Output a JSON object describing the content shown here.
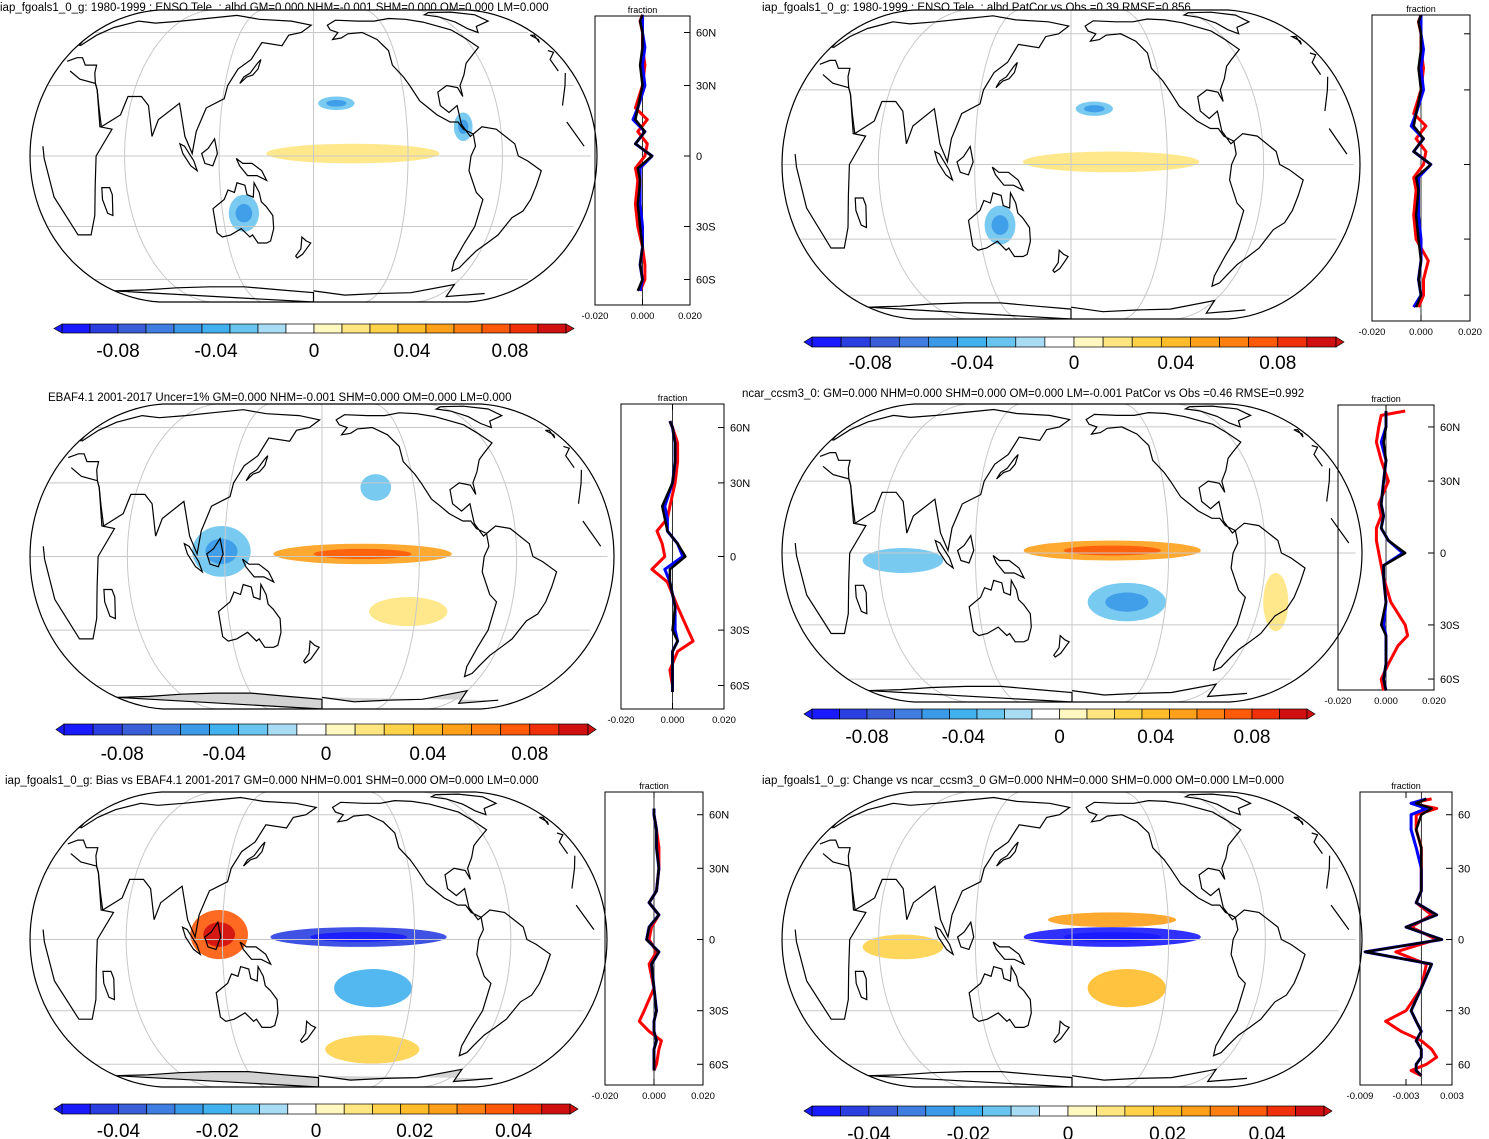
{
  "figure": {
    "colors": {
      "ocean_bg": "#ffffff",
      "coast": "#000000",
      "grid": "#c8c8c8",
      "missing": "#d3d3d3",
      "profile_red": "#ff0000",
      "profile_blue": "#0000ff",
      "profile_black": "#000000"
    }
  },
  "chart_data": [
    {
      "type": "heatmap",
      "title": "iap_fgoals1_0_g: 1980-1999 : ENSO Tele. : albd GM=0.000 NHM=-0.001 SHM=0.000 OM=0.000 LM=0.000",
      "projection": "Robinson, Pacific-centered",
      "colorbar": {
        "ticks": [
          "-0.08",
          "-0.04",
          "0",
          "0.04",
          "0.08"
        ],
        "colors": [
          "#1a1aff",
          "#2b3fe0",
          "#3a5ed8",
          "#3f7ee0",
          "#3b9ae8",
          "#40b0ee",
          "#6ac4f0",
          "#a8dcf5",
          "#ffffff",
          "#fff8c0",
          "#ffe680",
          "#ffd24a",
          "#ffbc2a",
          "#ffa01a",
          "#ff7f10",
          "#ff5a0a",
          "#f03008",
          "#d01010"
        ]
      },
      "anomalies_approx": [
        {
          "region": "equatorial Pacific",
          "sign": "positive",
          "value": 0.01
        },
        {
          "region": "north-central Pacific",
          "sign": "negative",
          "value": -0.03
        },
        {
          "region": "Australia",
          "sign": "negative",
          "value": -0.03
        },
        {
          "region": "Central America",
          "sign": "negative",
          "value": -0.03
        }
      ],
      "profile": {
        "xlabel": "fraction",
        "xticks": [
          "-0.020",
          "0.000",
          "0.020"
        ],
        "xlim": [
          -0.02,
          0.02
        ],
        "yticks": [
          "60N",
          "30N",
          "0",
          "30S",
          "60S"
        ],
        "lat": [
          78,
          70,
          60,
          50,
          40,
          30,
          20,
          15,
          10,
          5,
          0,
          -5,
          -10,
          -20,
          -30,
          -40,
          -50,
          -60,
          -70
        ],
        "model": [
          0.0,
          -0.001,
          0.0,
          0.0,
          -0.001,
          0.0,
          -0.002,
          -0.003,
          0.001,
          -0.003,
          0.004,
          -0.002,
          -0.001,
          -0.002,
          -0.001,
          0.0,
          -0.001,
          0.0,
          -0.002
        ],
        "obs": [
          0.0,
          -0.001,
          0.0,
          0.0,
          0.001,
          0.0,
          -0.003,
          0.002,
          -0.002,
          0.002,
          0.001,
          -0.003,
          -0.002,
          -0.003,
          -0.002,
          0.0,
          0.001,
          0.001,
          -0.001
        ],
        "other": [
          0.0,
          0.0,
          0.0,
          0.001,
          0.0,
          0.001,
          -0.002,
          -0.004,
          0.001,
          -0.003,
          0.004,
          -0.001,
          -0.001,
          -0.001,
          0.0,
          0.0,
          -0.001,
          0.0,
          -0.001
        ]
      }
    },
    {
      "type": "heatmap",
      "title": "iap_fgoals1_0_g: 1980-1999 : ENSO Tele. : albd PatCor vs Obs =0.39 RMSE=0.856",
      "projection": "Robinson, Pacific-centered",
      "colorbar": {
        "ticks": [
          "-0.08",
          "-0.04",
          "0",
          "0.04",
          "0.08"
        ],
        "colors": [
          "#1a1aff",
          "#2b3fe0",
          "#3a5ed8",
          "#3f7ee0",
          "#3b9ae8",
          "#40b0ee",
          "#6ac4f0",
          "#a8dcf5",
          "#ffffff",
          "#fff8c0",
          "#ffe680",
          "#ffd24a",
          "#ffbc2a",
          "#ffa01a",
          "#ff7f10",
          "#ff5a0a",
          "#f03008",
          "#d01010"
        ]
      },
      "anomalies_approx": [
        {
          "region": "equatorial Pacific",
          "sign": "positive",
          "value": 0.01
        },
        {
          "region": "north-central Pacific",
          "sign": "negative",
          "value": -0.03
        },
        {
          "region": "Australia",
          "sign": "negative",
          "value": -0.03
        }
      ],
      "profile": {
        "xlabel": "fraction",
        "xticks": [
          "-0.020",
          "0.000",
          "0.020"
        ],
        "xlim": [
          -0.02,
          0.02
        ],
        "yticks": [
          "",
          "",
          "",
          "",
          ""
        ],
        "lat": [
          78,
          70,
          60,
          50,
          40,
          30,
          20,
          15,
          10,
          5,
          0,
          -5,
          -10,
          -20,
          -30,
          -40,
          -50,
          -60,
          -70
        ],
        "model": [
          0.0,
          -0.001,
          0.0,
          0.0,
          -0.001,
          0.0,
          -0.002,
          -0.003,
          0.001,
          -0.003,
          0.004,
          -0.002,
          -0.001,
          -0.002,
          -0.001,
          0.0,
          -0.001,
          0.0,
          -0.002
        ],
        "obs": [
          0.0,
          -0.001,
          0.0,
          0.0,
          0.001,
          0.0,
          -0.003,
          0.002,
          -0.002,
          0.002,
          0.001,
          -0.003,
          -0.002,
          -0.003,
          -0.002,
          0.003,
          0.001,
          0.001,
          -0.001
        ],
        "other": [
          0.0,
          0.0,
          0.0,
          0.001,
          0.0,
          0.001,
          -0.002,
          -0.004,
          0.001,
          -0.003,
          0.004,
          -0.001,
          -0.001,
          -0.001,
          0.0,
          0.0,
          -0.001,
          0.0,
          -0.003
        ]
      }
    },
    {
      "type": "heatmap",
      "title": "EBAF4.1 2001-2017 Uncer=1% GM=0.000 NHM=-0.001 SHM=0.000 OM=0.000 LM=0.000",
      "projection": "Robinson, Pacific-centered",
      "colorbar": {
        "ticks": [
          "-0.08",
          "-0.04",
          "0",
          "0.04",
          "0.08"
        ],
        "colors": [
          "#1a1aff",
          "#2b3fe0",
          "#3a5ed8",
          "#3f7ee0",
          "#3b9ae8",
          "#40b0ee",
          "#6ac4f0",
          "#a8dcf5",
          "#ffffff",
          "#fff8c0",
          "#ffe680",
          "#ffd24a",
          "#ffbc2a",
          "#ffa01a",
          "#ff7f10",
          "#ff5a0a",
          "#f03008",
          "#d01010"
        ]
      },
      "anomalies_approx": [
        {
          "region": "equatorial Pacific",
          "sign": "positive",
          "value": 0.04
        },
        {
          "region": "Maritime Continent",
          "sign": "negative",
          "value": -0.03
        },
        {
          "region": "south-east Pacific",
          "sign": "positive",
          "value": 0.015
        },
        {
          "region": "north-east Pacific",
          "sign": "negative",
          "value": -0.02
        }
      ],
      "profile": {
        "xlabel": "fraction",
        "xticks": [
          "-0.020",
          "0.000",
          "0.020"
        ],
        "xlim": [
          -0.02,
          0.02
        ],
        "yticks": [
          "60N",
          "30N",
          "0",
          "30S",
          "60S"
        ],
        "lat": [
          65,
          60,
          50,
          40,
          30,
          20,
          15,
          10,
          5,
          0,
          -5,
          -10,
          -20,
          -30,
          -35,
          -40,
          -50,
          -60,
          -65
        ],
        "model": [
          -0.001,
          0.0,
          0.001,
          0.001,
          0.0,
          -0.004,
          -0.003,
          -0.002,
          0.002,
          0.005,
          -0.001,
          -0.001,
          0.001,
          0.0,
          0.002,
          0.0,
          0.0,
          0.0,
          0.0
        ],
        "obs": [
          -0.001,
          0.0,
          0.002,
          0.002,
          0.001,
          -0.001,
          -0.002,
          -0.006,
          -0.004,
          -0.003,
          -0.008,
          -0.002,
          0.002,
          0.006,
          0.008,
          0.002,
          -0.001,
          0.0,
          0.0
        ],
        "other": [
          -0.001,
          0.0,
          0.001,
          0.001,
          0.0,
          -0.003,
          -0.002,
          -0.002,
          0.002,
          0.004,
          -0.003,
          -0.001,
          0.001,
          0.001,
          0.002,
          0.0,
          0.0,
          0.0,
          0.0
        ]
      }
    },
    {
      "type": "heatmap",
      "title": "ncar_ccsm3_0: GM=0.000 NHM=0.000 SHM=0.000 OM=0.000 LM=-0.001 PatCor vs Obs =0.46 RMSE=0.992",
      "projection": "Robinson, Pacific-centered",
      "colorbar": {
        "ticks": [
          "-0.08",
          "-0.04",
          "0",
          "0.04",
          "0.08"
        ],
        "colors": [
          "#1a1aff",
          "#2b3fe0",
          "#3a5ed8",
          "#3f7ee0",
          "#3b9ae8",
          "#40b0ee",
          "#6ac4f0",
          "#a8dcf5",
          "#ffffff",
          "#fff8c0",
          "#ffe680",
          "#ffd24a",
          "#ffbc2a",
          "#ffa01a",
          "#ff7f10",
          "#ff5a0a",
          "#f03008",
          "#d01010"
        ]
      },
      "anomalies_approx": [
        {
          "region": "equatorial Pacific",
          "sign": "positive",
          "value": 0.04
        },
        {
          "region": "south-central Pacific",
          "sign": "negative",
          "value": -0.03
        },
        {
          "region": "Indian Ocean",
          "sign": "negative",
          "value": -0.02
        },
        {
          "region": "eastern South America",
          "sign": "positive",
          "value": 0.01
        }
      ],
      "profile": {
        "xlabel": "fraction",
        "xticks": [
          "-0.020",
          "0.000",
          "0.020"
        ],
        "xlim": [
          -0.02,
          0.02
        ],
        "yticks": [
          "60N",
          "30N",
          "0",
          "30S",
          "60S"
        ],
        "lat": [
          75,
          70,
          60,
          50,
          40,
          30,
          20,
          15,
          10,
          5,
          0,
          -5,
          -10,
          -20,
          -30,
          -35,
          -40,
          -50,
          -60,
          -70
        ],
        "model": [
          0.0,
          0.0,
          0.0,
          -0.001,
          0.0,
          -0.001,
          -0.002,
          -0.001,
          -0.002,
          0.001,
          0.008,
          -0.001,
          -0.001,
          0.0,
          -0.002,
          0.0,
          0.0,
          0.0,
          -0.001,
          0.0
        ],
        "obs": [
          0.008,
          -0.002,
          -0.003,
          -0.004,
          -0.002,
          0.001,
          -0.003,
          -0.002,
          -0.004,
          -0.004,
          -0.003,
          -0.002,
          -0.001,
          0.002,
          0.008,
          0.009,
          0.005,
          0.001,
          -0.002,
          -0.001
        ],
        "other": [
          0.0,
          0.0,
          0.0,
          -0.002,
          0.0,
          -0.001,
          -0.002,
          -0.001,
          -0.002,
          0.001,
          0.007,
          -0.001,
          -0.001,
          0.0,
          -0.001,
          0.0,
          0.0,
          0.0,
          -0.001,
          0.0
        ]
      }
    },
    {
      "type": "heatmap",
      "title": "iap_fgoals1_0_g: Bias vs EBAF4.1 2001-2017 GM=0.000 NHM=0.001 SHM=0.000 OM=0.000 LM=0.000",
      "projection": "Robinson, Pacific-centered",
      "colorbar": {
        "ticks": [
          "-0.04",
          "-0.02",
          "0",
          "0.02",
          "0.04"
        ],
        "colors": [
          "#1a1aff",
          "#2b3fe0",
          "#3a5ed8",
          "#3f7ee0",
          "#3b9ae8",
          "#40b0ee",
          "#6ac4f0",
          "#a8dcf5",
          "#ffffff",
          "#fff8c0",
          "#ffe680",
          "#ffd24a",
          "#ffbc2a",
          "#ffa01a",
          "#ff7f10",
          "#ff5a0a",
          "#f03008",
          "#d01010"
        ]
      },
      "anomalies_approx": [
        {
          "region": "equatorial Pacific",
          "sign": "negative",
          "value": -0.035
        },
        {
          "region": "Maritime Continent",
          "sign": "positive",
          "value": 0.03
        },
        {
          "region": "south-central Pacific",
          "sign": "negative",
          "value": -0.02
        },
        {
          "region": "Southern Ocean",
          "sign": "positive",
          "value": 0.01
        }
      ],
      "profile": {
        "xlabel": "fraction",
        "xticks": [
          "-0.020",
          "0.000",
          "0.020"
        ],
        "xlim": [
          -0.02,
          0.02
        ],
        "yticks": [
          "60N",
          "30N",
          "0",
          "30S",
          "60S"
        ],
        "lat": [
          65,
          60,
          50,
          40,
          30,
          20,
          15,
          10,
          5,
          0,
          -5,
          -10,
          -20,
          -30,
          -35,
          -40,
          -45,
          -50,
          -60,
          -65
        ],
        "model": [
          0.0,
          0.0,
          0.001,
          0.001,
          0.002,
          0.001,
          -0.002,
          0.002,
          -0.002,
          -0.003,
          0.002,
          -0.001,
          0.0,
          0.001,
          0.0,
          0.0,
          0.001,
          0.0,
          0.0,
          0.0
        ],
        "obs": [
          0.0,
          0.0,
          0.001,
          0.002,
          0.002,
          0.001,
          -0.002,
          0.002,
          -0.001,
          -0.002,
          0.001,
          -0.002,
          0.0,
          -0.004,
          -0.006,
          -0.002,
          0.003,
          0.002,
          0.001,
          0.0
        ],
        "other": [
          0.0,
          0.0,
          0.001,
          0.001,
          0.002,
          0.001,
          -0.002,
          0.002,
          -0.002,
          -0.003,
          0.002,
          -0.001,
          0.0,
          0.001,
          0.0,
          0.0,
          0.001,
          0.0,
          0.0,
          0.0
        ]
      }
    },
    {
      "type": "heatmap",
      "title": "iap_fgoals1_0_g: Change vs ncar_ccsm3_0 GM=0.000 NHM=0.000 SHM=0.000 OM=0.000 LM=0.000",
      "projection": "Robinson, Pacific-centered",
      "colorbar": {
        "ticks": [
          "-0.04",
          "-0.02",
          "0",
          "0.02",
          "0.04"
        ],
        "colors": [
          "#1a1aff",
          "#2b3fe0",
          "#3a5ed8",
          "#3f7ee0",
          "#3b9ae8",
          "#40b0ee",
          "#6ac4f0",
          "#a8dcf5",
          "#ffffff",
          "#fff8c0",
          "#ffe680",
          "#ffd24a",
          "#ffbc2a",
          "#ffa01a",
          "#ff7f10",
          "#ff5a0a",
          "#f03008",
          "#d01010"
        ]
      },
      "anomalies_approx": [
        {
          "region": "equatorial Pacific",
          "sign": "negative",
          "value": -0.04
        },
        {
          "region": "north equatorial Pacific",
          "sign": "positive",
          "value": 0.02
        },
        {
          "region": "south-central Pacific",
          "sign": "positive",
          "value": 0.015
        },
        {
          "region": "Indian Ocean",
          "sign": "positive",
          "value": 0.01
        }
      ],
      "profile": {
        "xlabel": "fraction",
        "xticks": [
          "-0.009",
          "-0.003",
          "0.003"
        ],
        "xlim": [
          -0.012,
          0.006
        ],
        "yticks": [
          "60",
          "30",
          "0",
          "30",
          "60"
        ],
        "lat": [
          75,
          70,
          65,
          60,
          50,
          40,
          30,
          20,
          15,
          10,
          5,
          0,
          -5,
          -10,
          -20,
          -30,
          -35,
          -40,
          -45,
          -50,
          -55,
          -60,
          -65,
          -70
        ],
        "model": [
          0.001,
          -0.001,
          0.002,
          0.0,
          -0.001,
          0.0,
          0.0,
          0.0,
          -0.001,
          0.003,
          -0.003,
          0.004,
          -0.011,
          0.002,
          0.0,
          -0.002,
          -0.001,
          0.0,
          -0.001,
          0.0,
          0.0,
          -0.001,
          -0.001,
          0.0
        ],
        "obs": [
          0.002,
          -0.002,
          0.003,
          -0.001,
          -0.001,
          0.0,
          0.0,
          0.0,
          -0.001,
          0.002,
          -0.002,
          0.003,
          -0.005,
          0.001,
          0.0,
          -0.003,
          -0.007,
          -0.004,
          0.0,
          0.002,
          0.003,
          0.001,
          -0.002,
          0.0
        ],
        "other": [
          0.001,
          -0.002,
          0.001,
          -0.002,
          -0.002,
          -0.001,
          0.0,
          0.0,
          -0.001,
          0.003,
          -0.003,
          0.004,
          -0.011,
          0.002,
          0.0,
          -0.002,
          -0.001,
          0.0,
          -0.001,
          0.0,
          0.0,
          -0.001,
          -0.001,
          0.0
        ]
      }
    }
  ]
}
